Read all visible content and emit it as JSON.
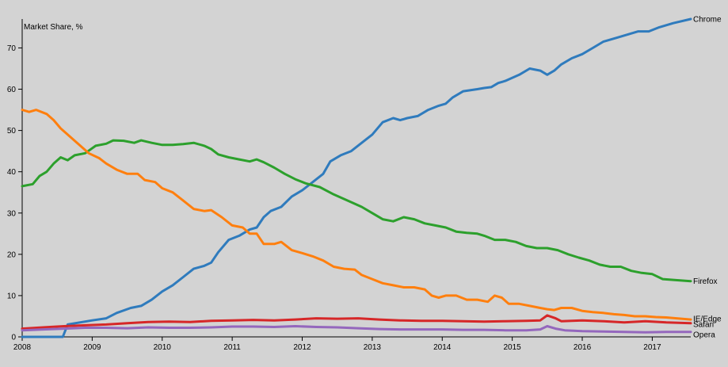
{
  "chart_data": {
    "type": "line",
    "ylabel": "Market Share, %",
    "xlim": [
      2008,
      2017.55
    ],
    "ylim": [
      0,
      77
    ],
    "x_ticks": [
      "2008",
      "2009",
      "2010",
      "2011",
      "2012",
      "2013",
      "2014",
      "2015",
      "2016",
      "2017"
    ],
    "y_ticks": [
      "0",
      "10",
      "20",
      "30",
      "40",
      "50",
      "60",
      "70"
    ],
    "grid": false,
    "legend": "labels at line ends, right",
    "series": [
      {
        "name": "Chrome",
        "color": "#2f7bbd",
        "points": [
          [
            2008.0,
            0
          ],
          [
            2008.58,
            0
          ],
          [
            2008.65,
            3
          ],
          [
            2009.0,
            4
          ],
          [
            2009.2,
            4.5
          ],
          [
            2009.35,
            5.8
          ],
          [
            2009.55,
            7
          ],
          [
            2009.7,
            7.5
          ],
          [
            2009.85,
            9
          ],
          [
            2010.0,
            11
          ],
          [
            2010.15,
            12.5
          ],
          [
            2010.3,
            14.5
          ],
          [
            2010.45,
            16.5
          ],
          [
            2010.6,
            17.2
          ],
          [
            2010.7,
            18
          ],
          [
            2010.8,
            20.5
          ],
          [
            2010.95,
            23.5
          ],
          [
            2011.1,
            24.5
          ],
          [
            2011.25,
            26
          ],
          [
            2011.35,
            26.5
          ],
          [
            2011.45,
            29
          ],
          [
            2011.55,
            30.5
          ],
          [
            2011.7,
            31.5
          ],
          [
            2011.85,
            34
          ],
          [
            2012.0,
            35.5
          ],
          [
            2012.15,
            37.5
          ],
          [
            2012.3,
            39.5
          ],
          [
            2012.4,
            42.5
          ],
          [
            2012.55,
            44
          ],
          [
            2012.7,
            45
          ],
          [
            2012.85,
            47
          ],
          [
            2013.0,
            49
          ],
          [
            2013.15,
            52
          ],
          [
            2013.3,
            53
          ],
          [
            2013.4,
            52.5
          ],
          [
            2013.5,
            53
          ],
          [
            2013.65,
            53.5
          ],
          [
            2013.8,
            55
          ],
          [
            2013.95,
            56
          ],
          [
            2014.05,
            56.5
          ],
          [
            2014.15,
            58
          ],
          [
            2014.3,
            59.5
          ],
          [
            2014.5,
            60
          ],
          [
            2014.6,
            60.3
          ],
          [
            2014.7,
            60.5
          ],
          [
            2014.8,
            61.5
          ],
          [
            2014.9,
            62
          ],
          [
            2015.1,
            63.5
          ],
          [
            2015.25,
            65
          ],
          [
            2015.4,
            64.5
          ],
          [
            2015.5,
            63.5
          ],
          [
            2015.6,
            64.5
          ],
          [
            2015.7,
            66
          ],
          [
            2015.85,
            67.5
          ],
          [
            2016.0,
            68.5
          ],
          [
            2016.15,
            70
          ],
          [
            2016.3,
            71.5
          ],
          [
            2016.5,
            72.5
          ],
          [
            2016.7,
            73.5
          ],
          [
            2016.8,
            74
          ],
          [
            2016.95,
            74
          ],
          [
            2017.1,
            75
          ],
          [
            2017.3,
            76
          ],
          [
            2017.55,
            77
          ]
        ]
      },
      {
        "name": "Firefox",
        "color": "#2ca02c",
        "points": [
          [
            2008.0,
            36.5
          ],
          [
            2008.15,
            37
          ],
          [
            2008.25,
            39
          ],
          [
            2008.35,
            40
          ],
          [
            2008.45,
            42
          ],
          [
            2008.55,
            43.5
          ],
          [
            2008.65,
            42.8
          ],
          [
            2008.75,
            44
          ],
          [
            2008.9,
            44.5
          ],
          [
            2009.05,
            46.3
          ],
          [
            2009.2,
            46.8
          ],
          [
            2009.3,
            47.6
          ],
          [
            2009.45,
            47.5
          ],
          [
            2009.6,
            47
          ],
          [
            2009.7,
            47.6
          ],
          [
            2009.85,
            47
          ],
          [
            2010.0,
            46.5
          ],
          [
            2010.15,
            46.5
          ],
          [
            2010.3,
            46.7
          ],
          [
            2010.45,
            47
          ],
          [
            2010.6,
            46.3
          ],
          [
            2010.7,
            45.5
          ],
          [
            2010.8,
            44.2
          ],
          [
            2010.95,
            43.5
          ],
          [
            2011.1,
            43
          ],
          [
            2011.25,
            42.5
          ],
          [
            2011.35,
            43
          ],
          [
            2011.45,
            42.3
          ],
          [
            2011.6,
            41
          ],
          [
            2011.75,
            39.5
          ],
          [
            2011.9,
            38.2
          ],
          [
            2012.05,
            37.2
          ],
          [
            2012.25,
            36.3
          ],
          [
            2012.45,
            34.5
          ],
          [
            2012.65,
            33
          ],
          [
            2012.85,
            31.5
          ],
          [
            2013.0,
            30
          ],
          [
            2013.15,
            28.5
          ],
          [
            2013.3,
            28
          ],
          [
            2013.45,
            29
          ],
          [
            2013.6,
            28.5
          ],
          [
            2013.75,
            27.5
          ],
          [
            2013.9,
            27
          ],
          [
            2014.05,
            26.5
          ],
          [
            2014.2,
            25.5
          ],
          [
            2014.35,
            25.2
          ],
          [
            2014.5,
            25
          ],
          [
            2014.6,
            24.5
          ],
          [
            2014.75,
            23.5
          ],
          [
            2014.9,
            23.5
          ],
          [
            2015.05,
            23
          ],
          [
            2015.2,
            22
          ],
          [
            2015.35,
            21.5
          ],
          [
            2015.5,
            21.5
          ],
          [
            2015.65,
            21
          ],
          [
            2015.8,
            20
          ],
          [
            2015.95,
            19.2
          ],
          [
            2016.1,
            18.5
          ],
          [
            2016.25,
            17.5
          ],
          [
            2016.4,
            17
          ],
          [
            2016.55,
            17
          ],
          [
            2016.7,
            16
          ],
          [
            2016.85,
            15.5
          ],
          [
            2017.0,
            15.2
          ],
          [
            2017.15,
            14
          ],
          [
            2017.3,
            13.8
          ],
          [
            2017.55,
            13.5
          ]
        ]
      },
      {
        "name": "IE/Edge",
        "color": "#ff7f0e",
        "points": [
          [
            2008.0,
            55
          ],
          [
            2008.1,
            54.5
          ],
          [
            2008.2,
            55
          ],
          [
            2008.35,
            54
          ],
          [
            2008.45,
            52.5
          ],
          [
            2008.55,
            50.5
          ],
          [
            2008.65,
            49
          ],
          [
            2008.75,
            47.5
          ],
          [
            2008.85,
            46
          ],
          [
            2008.95,
            44.5
          ],
          [
            2009.1,
            43.3
          ],
          [
            2009.2,
            42
          ],
          [
            2009.35,
            40.5
          ],
          [
            2009.5,
            39.5
          ],
          [
            2009.65,
            39.5
          ],
          [
            2009.75,
            38
          ],
          [
            2009.9,
            37.5
          ],
          [
            2010.0,
            36
          ],
          [
            2010.15,
            35
          ],
          [
            2010.3,
            33
          ],
          [
            2010.45,
            31
          ],
          [
            2010.6,
            30.5
          ],
          [
            2010.7,
            30.7
          ],
          [
            2010.85,
            29
          ],
          [
            2011.0,
            27
          ],
          [
            2011.15,
            26.5
          ],
          [
            2011.25,
            25
          ],
          [
            2011.35,
            25
          ],
          [
            2011.45,
            22.5
          ],
          [
            2011.6,
            22.5
          ],
          [
            2011.7,
            23
          ],
          [
            2011.85,
            21
          ],
          [
            2012.0,
            20.3
          ],
          [
            2012.15,
            19.5
          ],
          [
            2012.3,
            18.5
          ],
          [
            2012.45,
            17
          ],
          [
            2012.6,
            16.5
          ],
          [
            2012.75,
            16.3
          ],
          [
            2012.85,
            15
          ],
          [
            2013.0,
            14
          ],
          [
            2013.15,
            13
          ],
          [
            2013.3,
            12.5
          ],
          [
            2013.45,
            12
          ],
          [
            2013.6,
            12
          ],
          [
            2013.75,
            11.5
          ],
          [
            2013.85,
            10
          ],
          [
            2013.95,
            9.5
          ],
          [
            2014.05,
            10
          ],
          [
            2014.2,
            10
          ],
          [
            2014.35,
            9
          ],
          [
            2014.5,
            9
          ],
          [
            2014.65,
            8.5
          ],
          [
            2014.75,
            10
          ],
          [
            2014.85,
            9.5
          ],
          [
            2014.95,
            8
          ],
          [
            2015.1,
            8
          ],
          [
            2015.25,
            7.5
          ],
          [
            2015.4,
            7
          ],
          [
            2015.5,
            6.7
          ],
          [
            2015.6,
            6.5
          ],
          [
            2015.7,
            7
          ],
          [
            2015.85,
            7
          ],
          [
            2016.0,
            6.3
          ],
          [
            2016.15,
            6
          ],
          [
            2016.3,
            5.8
          ],
          [
            2016.45,
            5.5
          ],
          [
            2016.6,
            5.3
          ],
          [
            2016.75,
            5
          ],
          [
            2016.9,
            5
          ],
          [
            2017.05,
            4.8
          ],
          [
            2017.2,
            4.7
          ],
          [
            2017.35,
            4.5
          ],
          [
            2017.55,
            4.2
          ]
        ]
      },
      {
        "name": "Safari",
        "color": "#d62728",
        "points": [
          [
            2008.0,
            2
          ],
          [
            2008.3,
            2.3
          ],
          [
            2008.6,
            2.6
          ],
          [
            2008.9,
            2.8
          ],
          [
            2009.2,
            3
          ],
          [
            2009.5,
            3.3
          ],
          [
            2009.8,
            3.6
          ],
          [
            2010.1,
            3.7
          ],
          [
            2010.4,
            3.6
          ],
          [
            2010.7,
            3.9
          ],
          [
            2011.0,
            4
          ],
          [
            2011.3,
            4.1
          ],
          [
            2011.6,
            4
          ],
          [
            2011.9,
            4.2
          ],
          [
            2012.2,
            4.5
          ],
          [
            2012.5,
            4.4
          ],
          [
            2012.8,
            4.5
          ],
          [
            2013.1,
            4.2
          ],
          [
            2013.4,
            4
          ],
          [
            2013.7,
            3.9
          ],
          [
            2014.0,
            3.9
          ],
          [
            2014.3,
            3.8
          ],
          [
            2014.6,
            3.7
          ],
          [
            2014.9,
            3.8
          ],
          [
            2015.2,
            3.9
          ],
          [
            2015.4,
            4
          ],
          [
            2015.5,
            5.2
          ],
          [
            2015.62,
            4.5
          ],
          [
            2015.7,
            3.8
          ],
          [
            2016.0,
            4
          ],
          [
            2016.3,
            3.8
          ],
          [
            2016.6,
            3.5
          ],
          [
            2016.9,
            3.8
          ],
          [
            2017.2,
            3.5
          ],
          [
            2017.55,
            3.3
          ]
        ]
      },
      {
        "name": "Opera",
        "color": "#9467bd",
        "points": [
          [
            2008.0,
            1.6
          ],
          [
            2008.3,
            1.8
          ],
          [
            2008.6,
            2
          ],
          [
            2008.9,
            2.2
          ],
          [
            2009.2,
            2.2
          ],
          [
            2009.5,
            2.1
          ],
          [
            2009.8,
            2.3
          ],
          [
            2010.1,
            2.2
          ],
          [
            2010.4,
            2.2
          ],
          [
            2010.7,
            2.3
          ],
          [
            2011.0,
            2.5
          ],
          [
            2011.3,
            2.5
          ],
          [
            2011.6,
            2.4
          ],
          [
            2011.9,
            2.6
          ],
          [
            2012.2,
            2.4
          ],
          [
            2012.5,
            2.3
          ],
          [
            2012.8,
            2.1
          ],
          [
            2013.1,
            1.9
          ],
          [
            2013.4,
            1.8
          ],
          [
            2013.7,
            1.8
          ],
          [
            2014.0,
            1.8
          ],
          [
            2014.3,
            1.7
          ],
          [
            2014.6,
            1.7
          ],
          [
            2014.9,
            1.6
          ],
          [
            2015.2,
            1.6
          ],
          [
            2015.4,
            1.8
          ],
          [
            2015.5,
            2.6
          ],
          [
            2015.62,
            2
          ],
          [
            2015.75,
            1.6
          ],
          [
            2016.0,
            1.4
          ],
          [
            2016.3,
            1.3
          ],
          [
            2016.6,
            1.2
          ],
          [
            2016.9,
            1.1
          ],
          [
            2017.2,
            1.2
          ],
          [
            2017.55,
            1.2
          ]
        ]
      }
    ]
  }
}
